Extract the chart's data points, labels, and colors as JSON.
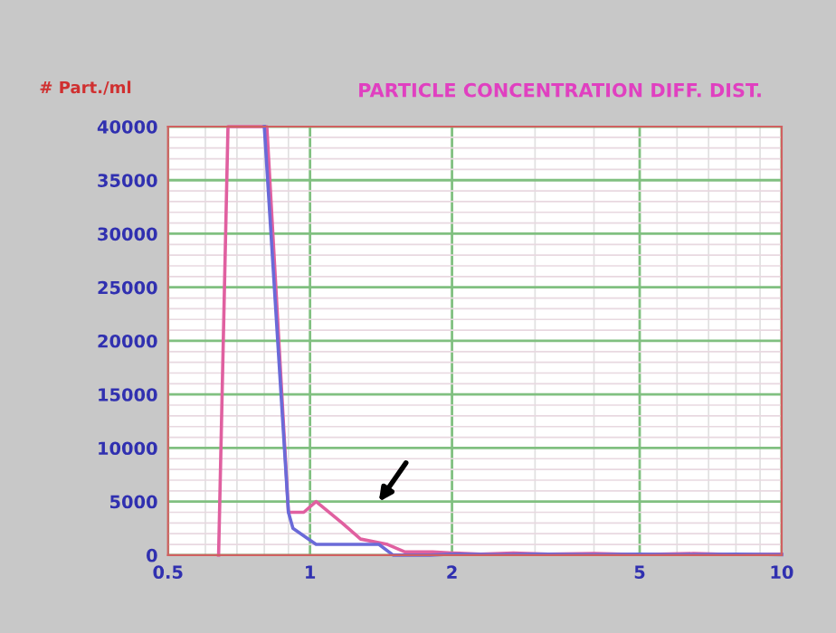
{
  "chart_data": {
    "type": "line",
    "title": "PARTICLE CONCENTRATION DIFF. DIST.",
    "ylabel": "# Part./ml",
    "log": "x",
    "xlim": [
      0.5,
      10
    ],
    "xticks": [
      0.5,
      1,
      2,
      5,
      10
    ],
    "ylim": [
      0,
      40000
    ],
    "yticks": [
      0,
      5000,
      10000,
      15000,
      20000,
      25000,
      30000,
      35000,
      40000
    ],
    "grid": true,
    "marker": "none",
    "line_style": "solid",
    "series": [
      {
        "color": "#e060a0",
        "x": [
          0.64,
          0.67,
          0.81,
          0.9,
          0.97,
          1.03,
          1.17,
          1.28,
          1.46,
          1.59,
          1.82,
          2.0,
          2.3,
          2.7,
          3.2,
          4.0,
          5.0,
          6.5,
          8.0,
          10.0
        ],
        "values": [
          0,
          40000,
          40000,
          4000,
          4000,
          5000,
          3000,
          1500,
          1000,
          300,
          300,
          200,
          100,
          200,
          100,
          150,
          50,
          150,
          50,
          100
        ]
      },
      {
        "color": "#6a6ad8",
        "x": [
          0.8,
          0.9,
          0.92,
          1.03,
          1.2,
          1.4,
          1.5,
          1.8,
          2.0,
          2.5,
          3.0,
          4.0,
          5.0,
          6.0,
          8.0,
          10.0
        ],
        "values": [
          40000,
          4000,
          2500,
          1000,
          1000,
          1000,
          0,
          0,
          100,
          50,
          100,
          50,
          100,
          50,
          100,
          50
        ]
      }
    ]
  }
}
